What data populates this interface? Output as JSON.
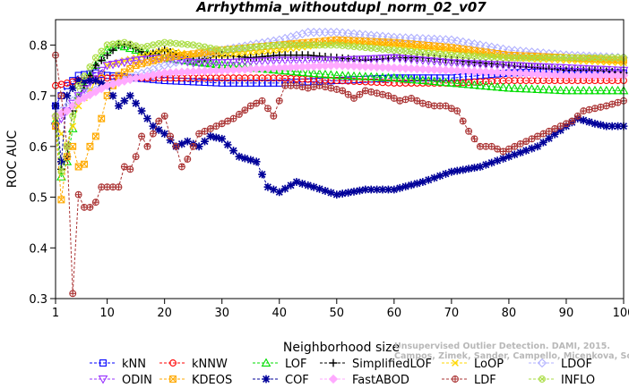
{
  "chart_data": {
    "type": "line",
    "title": "Arrhythmia_withoutdupl_norm_02_v07",
    "xlabel": "Neighborhood size",
    "ylabel": "ROC AUC",
    "xlim": [
      1,
      100
    ],
    "ylim": [
      0.3,
      0.85
    ],
    "x_ticks": [
      "1",
      "10",
      "20",
      "30",
      "40",
      "50",
      "60",
      "70",
      "80",
      "90",
      "100"
    ],
    "y_ticks": [
      "0.3",
      "0.4",
      "0.5",
      "0.6",
      "0.7",
      "0.8"
    ],
    "grid": false,
    "legend_position": "bottom",
    "watermark": [
      "Campos, Zimek, Sander, Campello, Micenkova, Schubert, Assent, Houle",
      "Unsupervised Outlier Detection. DAMI, 2015."
    ],
    "series": [
      {
        "name": "kNN",
        "color": "#0000ff",
        "marker": "square",
        "points": [
          [
            1,
            0.68
          ],
          [
            3,
            0.72
          ],
          [
            5,
            0.74
          ],
          [
            8,
            0.745
          ],
          [
            10,
            0.74
          ],
          [
            15,
            0.735
          ],
          [
            20,
            0.73
          ],
          [
            30,
            0.725
          ],
          [
            40,
            0.725
          ],
          [
            50,
            0.73
          ],
          [
            60,
            0.735
          ],
          [
            70,
            0.735
          ],
          [
            80,
            0.745
          ],
          [
            90,
            0.748
          ],
          [
            100,
            0.745
          ]
        ]
      },
      {
        "name": "kNNW",
        "color": "#ff0000",
        "marker": "circle",
        "points": [
          [
            1,
            0.72
          ],
          [
            3,
            0.725
          ],
          [
            5,
            0.73
          ],
          [
            10,
            0.735
          ],
          [
            20,
            0.735
          ],
          [
            30,
            0.735
          ],
          [
            40,
            0.735
          ],
          [
            50,
            0.73
          ],
          [
            60,
            0.725
          ],
          [
            70,
            0.725
          ],
          [
            80,
            0.73
          ],
          [
            90,
            0.73
          ],
          [
            100,
            0.73
          ]
        ]
      },
      {
        "name": "LOF",
        "color": "#00dd00",
        "marker": "triangle",
        "points": [
          [
            1,
            0.65
          ],
          [
            2,
            0.54
          ],
          [
            3,
            0.57
          ],
          [
            5,
            0.7
          ],
          [
            8,
            0.76
          ],
          [
            10,
            0.79
          ],
          [
            12,
            0.8
          ],
          [
            15,
            0.79
          ],
          [
            20,
            0.775
          ],
          [
            30,
            0.76
          ],
          [
            40,
            0.75
          ],
          [
            50,
            0.74
          ],
          [
            60,
            0.735
          ],
          [
            70,
            0.725
          ],
          [
            80,
            0.715
          ],
          [
            90,
            0.71
          ],
          [
            100,
            0.71
          ]
        ]
      },
      {
        "name": "SimplifiedLOF",
        "color": "#000000",
        "marker": "plus",
        "points": [
          [
            1,
            0.66
          ],
          [
            2,
            0.555
          ],
          [
            3,
            0.58
          ],
          [
            4,
            0.67
          ],
          [
            6,
            0.72
          ],
          [
            8,
            0.76
          ],
          [
            10,
            0.78
          ],
          [
            12,
            0.8
          ],
          [
            14,
            0.8
          ],
          [
            17,
            0.78
          ],
          [
            20,
            0.79
          ],
          [
            25,
            0.77
          ],
          [
            30,
            0.78
          ],
          [
            35,
            0.775
          ],
          [
            40,
            0.78
          ],
          [
            45,
            0.78
          ],
          [
            50,
            0.775
          ],
          [
            55,
            0.77
          ],
          [
            60,
            0.775
          ],
          [
            65,
            0.775
          ],
          [
            70,
            0.77
          ],
          [
            75,
            0.765
          ],
          [
            80,
            0.76
          ],
          [
            85,
            0.755
          ],
          [
            90,
            0.75
          ],
          [
            95,
            0.75
          ],
          [
            100,
            0.745
          ]
        ]
      },
      {
        "name": "LoOP",
        "color": "#ffd700",
        "marker": "x",
        "points": [
          [
            1,
            0.65
          ],
          [
            3,
            0.6
          ],
          [
            5,
            0.68
          ],
          [
            10,
            0.76
          ],
          [
            15,
            0.775
          ],
          [
            20,
            0.79
          ],
          [
            25,
            0.78
          ],
          [
            30,
            0.78
          ],
          [
            40,
            0.79
          ],
          [
            50,
            0.805
          ],
          [
            60,
            0.8
          ],
          [
            70,
            0.79
          ],
          [
            80,
            0.775
          ],
          [
            90,
            0.77
          ],
          [
            100,
            0.765
          ]
        ]
      },
      {
        "name": "LDOF",
        "color": "#b0b0ff",
        "marker": "diamond",
        "points": [
          [
            1,
            0.66
          ],
          [
            3,
            0.68
          ],
          [
            5,
            0.7
          ],
          [
            10,
            0.72
          ],
          [
            15,
            0.74
          ],
          [
            20,
            0.76
          ],
          [
            30,
            0.79
          ],
          [
            40,
            0.81
          ],
          [
            45,
            0.825
          ],
          [
            50,
            0.825
          ],
          [
            55,
            0.82
          ],
          [
            60,
            0.815
          ],
          [
            70,
            0.81
          ],
          [
            80,
            0.79
          ],
          [
            90,
            0.78
          ],
          [
            100,
            0.775
          ]
        ]
      },
      {
        "name": "ODIN",
        "color": "#9933ff",
        "marker": "triangle-down",
        "points": [
          [
            1,
            0.64
          ],
          [
            3,
            0.67
          ],
          [
            5,
            0.7
          ],
          [
            8,
            0.74
          ],
          [
            10,
            0.76
          ],
          [
            15,
            0.77
          ],
          [
            20,
            0.775
          ],
          [
            25,
            0.765
          ],
          [
            30,
            0.765
          ],
          [
            40,
            0.77
          ],
          [
            50,
            0.77
          ],
          [
            60,
            0.775
          ],
          [
            70,
            0.765
          ],
          [
            80,
            0.76
          ],
          [
            90,
            0.755
          ],
          [
            100,
            0.75
          ]
        ]
      },
      {
        "name": "KDEOS",
        "color": "#ffaa00",
        "marker": "square-cross",
        "points": [
          [
            1,
            0.64
          ],
          [
            2,
            0.495
          ],
          [
            3,
            0.58
          ],
          [
            4,
            0.6
          ],
          [
            5,
            0.56
          ],
          [
            6,
            0.565
          ],
          [
            7,
            0.6
          ],
          [
            8,
            0.62
          ],
          [
            9,
            0.655
          ],
          [
            10,
            0.7
          ],
          [
            12,
            0.74
          ],
          [
            15,
            0.76
          ],
          [
            20,
            0.775
          ],
          [
            30,
            0.79
          ],
          [
            40,
            0.8
          ],
          [
            50,
            0.81
          ],
          [
            60,
            0.805
          ],
          [
            70,
            0.795
          ],
          [
            80,
            0.78
          ],
          [
            90,
            0.775
          ],
          [
            100,
            0.77
          ]
        ]
      },
      {
        "name": "COF",
        "color": "#000099",
        "marker": "asterisk",
        "points": [
          [
            1,
            0.68
          ],
          [
            2,
            0.57
          ],
          [
            3,
            0.7
          ],
          [
            5,
            0.73
          ],
          [
            8,
            0.73
          ],
          [
            10,
            0.72
          ],
          [
            12,
            0.68
          ],
          [
            14,
            0.7
          ],
          [
            16,
            0.67
          ],
          [
            18,
            0.64
          ],
          [
            20,
            0.625
          ],
          [
            22,
            0.6
          ],
          [
            24,
            0.61
          ],
          [
            26,
            0.6
          ],
          [
            28,
            0.62
          ],
          [
            30,
            0.615
          ],
          [
            33,
            0.58
          ],
          [
            36,
            0.57
          ],
          [
            38,
            0.52
          ],
          [
            40,
            0.51
          ],
          [
            43,
            0.53
          ],
          [
            46,
            0.52
          ],
          [
            50,
            0.505
          ],
          [
            55,
            0.515
          ],
          [
            60,
            0.515
          ],
          [
            65,
            0.53
          ],
          [
            70,
            0.55
          ],
          [
            75,
            0.56
          ],
          [
            80,
            0.58
          ],
          [
            85,
            0.6
          ],
          [
            90,
            0.64
          ],
          [
            92,
            0.655
          ],
          [
            95,
            0.645
          ],
          [
            97,
            0.64
          ],
          [
            100,
            0.64
          ]
        ]
      },
      {
        "name": "FastABOD",
        "color": "#ffaaff",
        "marker": "diamond-filled",
        "points": [
          [
            1,
            0.66
          ],
          [
            3,
            0.67
          ],
          [
            5,
            0.69
          ],
          [
            10,
            0.72
          ],
          [
            15,
            0.735
          ],
          [
            20,
            0.745
          ],
          [
            30,
            0.75
          ],
          [
            40,
            0.755
          ],
          [
            50,
            0.76
          ],
          [
            60,
            0.755
          ],
          [
            70,
            0.75
          ],
          [
            80,
            0.745
          ],
          [
            90,
            0.74
          ],
          [
            100,
            0.74
          ]
        ]
      },
      {
        "name": "LDF",
        "color": "#aa3333",
        "marker": "circle-plus",
        "points": [
          [
            1,
            0.78
          ],
          [
            2,
            0.7
          ],
          [
            3,
            0.6
          ],
          [
            4,
            0.31
          ],
          [
            5,
            0.505
          ],
          [
            6,
            0.48
          ],
          [
            7,
            0.48
          ],
          [
            8,
            0.49
          ],
          [
            9,
            0.52
          ],
          [
            10,
            0.52
          ],
          [
            12,
            0.52
          ],
          [
            13,
            0.56
          ],
          [
            14,
            0.555
          ],
          [
            15,
            0.58
          ],
          [
            16,
            0.62
          ],
          [
            17,
            0.6
          ],
          [
            18,
            0.625
          ],
          [
            19,
            0.65
          ],
          [
            20,
            0.66
          ],
          [
            21,
            0.62
          ],
          [
            22,
            0.6
          ],
          [
            23,
            0.56
          ],
          [
            24,
            0.575
          ],
          [
            26,
            0.625
          ],
          [
            28,
            0.635
          ],
          [
            30,
            0.645
          ],
          [
            32,
            0.655
          ],
          [
            35,
            0.68
          ],
          [
            37,
            0.69
          ],
          [
            39,
            0.66
          ],
          [
            41,
            0.72
          ],
          [
            43,
            0.72
          ],
          [
            45,
            0.715
          ],
          [
            47,
            0.72
          ],
          [
            49,
            0.715
          ],
          [
            51,
            0.71
          ],
          [
            53,
            0.695
          ],
          [
            55,
            0.71
          ],
          [
            57,
            0.705
          ],
          [
            59,
            0.7
          ],
          [
            61,
            0.69
          ],
          [
            63,
            0.695
          ],
          [
            65,
            0.685
          ],
          [
            67,
            0.68
          ],
          [
            69,
            0.68
          ],
          [
            71,
            0.67
          ],
          [
            72,
            0.65
          ],
          [
            73,
            0.63
          ],
          [
            75,
            0.6
          ],
          [
            77,
            0.6
          ],
          [
            79,
            0.59
          ],
          [
            81,
            0.6
          ],
          [
            83,
            0.61
          ],
          [
            85,
            0.62
          ],
          [
            87,
            0.63
          ],
          [
            89,
            0.64
          ],
          [
            91,
            0.65
          ],
          [
            93,
            0.67
          ],
          [
            95,
            0.675
          ],
          [
            97,
            0.68
          ],
          [
            100,
            0.69
          ]
        ]
      },
      {
        "name": "INFLO",
        "color": "#aadd44",
        "marker": "circle-x",
        "points": [
          [
            1,
            0.66
          ],
          [
            2,
            0.55
          ],
          [
            3,
            0.6
          ],
          [
            5,
            0.72
          ],
          [
            8,
            0.775
          ],
          [
            10,
            0.8
          ],
          [
            13,
            0.805
          ],
          [
            16,
            0.795
          ],
          [
            20,
            0.805
          ],
          [
            25,
            0.8
          ],
          [
            30,
            0.79
          ],
          [
            40,
            0.8
          ],
          [
            50,
            0.8
          ],
          [
            60,
            0.79
          ],
          [
            70,
            0.78
          ],
          [
            80,
            0.775
          ],
          [
            90,
            0.775
          ],
          [
            100,
            0.775
          ]
        ]
      }
    ]
  }
}
